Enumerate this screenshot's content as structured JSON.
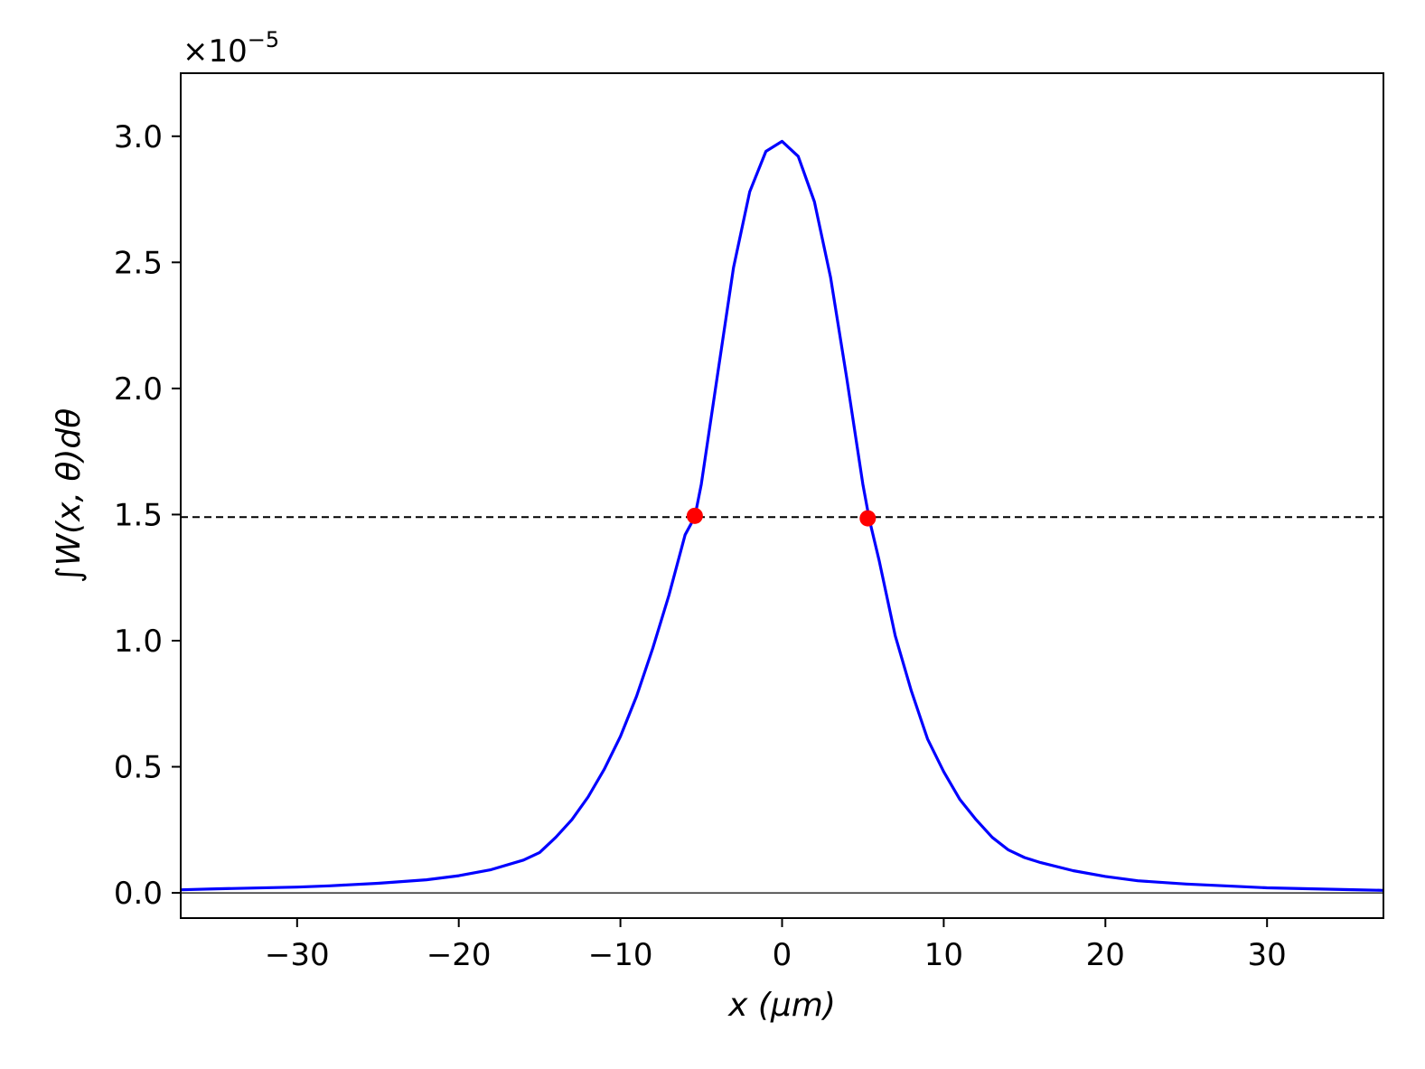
{
  "chart_data": {
    "type": "line",
    "xlabel": "x  (μm)",
    "ylabel": "∫W(x, θ)dθ",
    "y_offset_label": "×10",
    "y_offset_exponent": "−5",
    "xlim": [
      -37.2,
      37.2
    ],
    "ylim": [
      -0.1,
      3.25
    ],
    "x_ticks": [
      -30,
      -20,
      -10,
      0,
      10,
      20,
      30
    ],
    "x_tick_labels": [
      "−30",
      "−20",
      "−10",
      "0",
      "10",
      "20",
      "30"
    ],
    "y_ticks": [
      0.0,
      0.5,
      1.0,
      1.5,
      2.0,
      2.5,
      3.0
    ],
    "y_tick_labels": [
      "0.0",
      "0.5",
      "1.0",
      "1.5",
      "2.0",
      "2.5",
      "3.0"
    ],
    "grid": false,
    "zero_line": 0,
    "half_max_line": 1.49,
    "series": [
      {
        "color": "#0000ff",
        "x": [
          -37.2,
          -35,
          -30,
          -28,
          -25,
          -22,
          -20,
          -18,
          -16,
          -15,
          -14,
          -13,
          -12,
          -11,
          -10,
          -9,
          -8,
          -7,
          -6,
          -5.4,
          -5,
          -4,
          -3,
          -2,
          -1,
          0,
          1,
          2,
          3,
          4,
          5,
          5.4,
          6,
          7,
          8,
          9,
          10,
          11,
          12,
          13,
          14,
          15,
          16,
          18,
          20,
          22,
          25,
          28,
          30,
          35,
          37.2
        ],
        "y": [
          0.012,
          0.016,
          0.023,
          0.028,
          0.038,
          0.052,
          0.068,
          0.092,
          0.13,
          0.16,
          0.22,
          0.29,
          0.38,
          0.49,
          0.62,
          0.78,
          0.97,
          1.18,
          1.42,
          1.49,
          1.62,
          2.05,
          2.48,
          2.78,
          2.94,
          2.98,
          2.92,
          2.74,
          2.44,
          2.04,
          1.62,
          1.48,
          1.32,
          1.02,
          0.8,
          0.61,
          0.48,
          0.37,
          0.29,
          0.22,
          0.17,
          0.14,
          0.12,
          0.088,
          0.065,
          0.048,
          0.035,
          0.026,
          0.02,
          0.013,
          0.01
        ]
      }
    ],
    "markers": {
      "color": "#ff0000",
      "x": [
        -5.4,
        5.3
      ],
      "y": [
        1.495,
        1.485
      ]
    }
  }
}
